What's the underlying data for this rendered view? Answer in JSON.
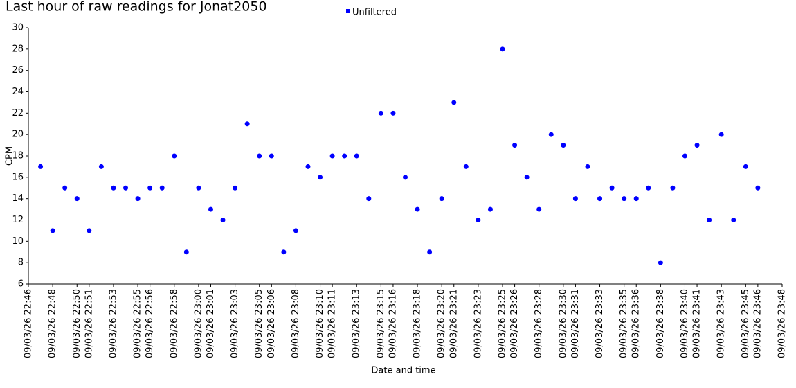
{
  "chart_data": {
    "type": "scatter",
    "title": "Last hour of raw readings for Jonat2050",
    "x_label": "Date and time",
    "y_label": "CPM",
    "series": [
      {
        "name": "Unfiltered",
        "color": "#0000ff",
        "x": [
          "09/03/26 22:47",
          "09/03/26 22:48",
          "09/03/26 22:49",
          "09/03/26 22:50",
          "09/03/26 22:51",
          "09/03/26 22:52",
          "09/03/26 22:53",
          "09/03/26 22:54",
          "09/03/26 22:55",
          "09/03/26 22:56",
          "09/03/26 22:57",
          "09/03/26 22:58",
          "09/03/26 22:59",
          "09/03/26 23:00",
          "09/03/26 23:01",
          "09/03/26 23:02",
          "09/03/26 23:03",
          "09/03/26 23:04",
          "09/03/26 23:05",
          "09/03/26 23:06",
          "09/03/26 23:07",
          "09/03/26 23:08",
          "09/03/26 23:09",
          "09/03/26 23:10",
          "09/03/26 23:11",
          "09/03/26 23:12",
          "09/03/26 23:13",
          "09/03/26 23:14",
          "09/03/26 23:15",
          "09/03/26 23:16",
          "09/03/26 23:17",
          "09/03/26 23:18",
          "09/03/26 23:19",
          "09/03/26 23:20",
          "09/03/26 23:21",
          "09/03/26 23:22",
          "09/03/26 23:23",
          "09/03/26 23:24",
          "09/03/26 23:25",
          "09/03/26 23:26",
          "09/03/26 23:27",
          "09/03/26 23:28",
          "09/03/26 23:29",
          "09/03/26 23:30",
          "09/03/26 23:31",
          "09/03/26 23:32",
          "09/03/26 23:33",
          "09/03/26 23:34",
          "09/03/26 23:35",
          "09/03/26 23:36",
          "09/03/26 23:37",
          "09/03/26 23:38",
          "09/03/26 23:39",
          "09/03/26 23:40",
          "09/03/26 23:41",
          "09/03/26 23:42",
          "09/03/26 23:43",
          "09/03/26 23:44",
          "09/03/26 23:45",
          "09/03/26 23:46"
        ],
        "values": [
          17,
          11,
          15,
          14,
          11,
          17,
          15,
          15,
          14,
          15,
          15,
          18,
          9,
          15,
          13,
          12,
          15,
          21,
          18,
          18,
          9,
          11,
          17,
          16,
          18,
          18,
          18,
          14,
          22,
          22,
          16,
          13,
          9,
          14,
          23,
          17,
          12,
          13,
          28,
          19,
          16,
          13,
          20,
          19,
          14,
          17,
          14,
          15,
          14,
          14,
          15,
          8,
          15,
          18,
          19,
          12,
          20,
          12,
          17,
          15
        ]
      }
    ],
    "xlim": [
      "09/03/26 22:46",
      "09/03/26 23:48"
    ],
    "xticks": [
      "09/03/26 22:46",
      "09/03/26 22:48",
      "09/03/26 22:50",
      "09/03/26 22:51",
      "09/03/26 22:53",
      "09/03/26 22:55",
      "09/03/26 22:56",
      "09/03/26 22:58",
      "09/03/26 23:00",
      "09/03/26 23:01",
      "09/03/26 23:03",
      "09/03/26 23:05",
      "09/03/26 23:06",
      "09/03/26 23:08",
      "09/03/26 23:10",
      "09/03/26 23:11",
      "09/03/26 23:13",
      "09/03/26 23:15",
      "09/03/26 23:16",
      "09/03/26 23:18",
      "09/03/26 23:20",
      "09/03/26 23:21",
      "09/03/26 23:23",
      "09/03/26 23:25",
      "09/03/26 23:26",
      "09/03/26 23:28",
      "09/03/26 23:30",
      "09/03/26 23:31",
      "09/03/26 23:33",
      "09/03/26 23:35",
      "09/03/26 23:36",
      "09/03/26 23:38",
      "09/03/26 23:40",
      "09/03/26 23:41",
      "09/03/26 23:43",
      "09/03/26 23:45",
      "09/03/26 23:46",
      "09/03/26 23:48"
    ],
    "ylim": [
      6,
      30
    ],
    "yticks": [
      6,
      8,
      10,
      12,
      14,
      16,
      18,
      20,
      22,
      24,
      26,
      28,
      30
    ],
    "grid": false,
    "legend": "top"
  }
}
